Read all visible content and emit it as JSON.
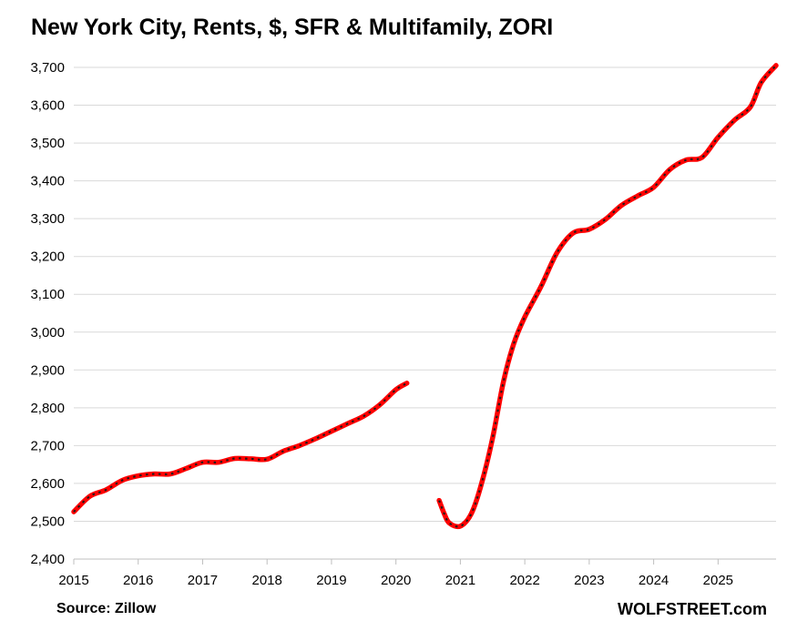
{
  "footer": {
    "source": "Source: Zillow",
    "brand": "WOLFSTREET.com"
  },
  "chart_data": {
    "type": "line",
    "title": "New York City, Rents, $, SFR & Multifamily, ZORI",
    "xlabel": "",
    "ylabel": "",
    "xlim": [
      2015,
      2025.9
    ],
    "ylim": [
      2400,
      3700
    ],
    "y_ticks": [
      "2,400",
      "2,500",
      "2,600",
      "2,700",
      "2,800",
      "2,900",
      "3,000",
      "3,100",
      "3,200",
      "3,300",
      "3,400",
      "3,500",
      "3,600",
      "3,700"
    ],
    "x_ticks": [
      "2015",
      "2016",
      "2017",
      "2018",
      "2019",
      "2020",
      "2021",
      "2022",
      "2023",
      "2024",
      "2025"
    ],
    "grid": true,
    "legend": "none",
    "colors": {
      "line": "#ff0000",
      "marker": "#1a1a1a",
      "grid": "#d9d9d9"
    },
    "series": [
      {
        "segments": [
          [
            [
              2015.0,
              2525
            ],
            [
              2015.25,
              2566
            ],
            [
              2015.5,
              2583
            ],
            [
              2015.75,
              2608
            ],
            [
              2016.0,
              2620
            ],
            [
              2016.25,
              2625
            ],
            [
              2016.5,
              2625
            ],
            [
              2016.75,
              2640
            ],
            [
              2017.0,
              2656
            ],
            [
              2017.25,
              2656
            ],
            [
              2017.5,
              2666
            ],
            [
              2017.75,
              2665
            ],
            [
              2018.0,
              2664
            ],
            [
              2018.25,
              2685
            ],
            [
              2018.5,
              2700
            ],
            [
              2018.75,
              2718
            ],
            [
              2019.0,
              2738
            ],
            [
              2019.25,
              2758
            ],
            [
              2019.5,
              2778
            ],
            [
              2019.75,
              2808
            ],
            [
              2020.0,
              2848
            ],
            [
              2020.17,
              2865
            ]
          ],
          [
            [
              2020.67,
              2555
            ],
            [
              2020.75,
              2520
            ],
            [
              2020.83,
              2495
            ],
            [
              2021.0,
              2487
            ],
            [
              2021.17,
              2520
            ],
            [
              2021.33,
              2600
            ],
            [
              2021.5,
              2720
            ],
            [
              2021.67,
              2870
            ],
            [
              2021.83,
              2970
            ],
            [
              2022.0,
              3040
            ],
            [
              2022.25,
              3120
            ],
            [
              2022.5,
              3210
            ],
            [
              2022.75,
              3262
            ],
            [
              2023.0,
              3272
            ],
            [
              2023.25,
              3298
            ],
            [
              2023.5,
              3335
            ],
            [
              2023.75,
              3360
            ],
            [
              2024.0,
              3383
            ],
            [
              2024.25,
              3430
            ],
            [
              2024.5,
              3455
            ],
            [
              2024.75,
              3462
            ],
            [
              2025.0,
              3515
            ],
            [
              2025.25,
              3560
            ],
            [
              2025.5,
              3595
            ],
            [
              2025.67,
              3660
            ],
            [
              2025.9,
              3705
            ]
          ]
        ]
      }
    ]
  }
}
